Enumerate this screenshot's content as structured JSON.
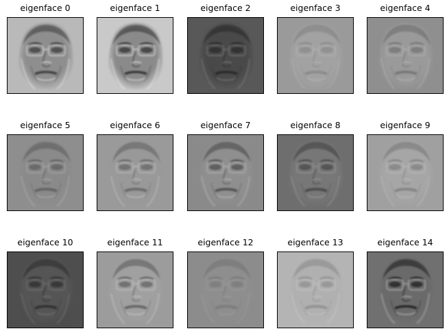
{
  "figure": {
    "panels": [
      {
        "title": "eigenface 0",
        "bg": "#b9b9b9",
        "face": "#8e8e8e",
        "dark": "#3a3a3a",
        "light": "#e8e8e8",
        "contrast": 0.9
      },
      {
        "title": "eigenface 1",
        "bg": "#c9c9c9",
        "face": "#8a8a8a",
        "dark": "#2a2a2a",
        "light": "#f2f2f2",
        "contrast": 0.85
      },
      {
        "title": "eigenface 2",
        "bg": "#585858",
        "face": "#4a4a4a",
        "dark": "#1e1e1e",
        "light": "#8e8e8e",
        "contrast": 0.7
      },
      {
        "title": "eigenface 3",
        "bg": "#9a9a9a",
        "face": "#a2a2a2",
        "dark": "#6a6a6a",
        "light": "#cfcfcf",
        "contrast": 0.4
      },
      {
        "title": "eigenface 4",
        "bg": "#8f8f8f",
        "face": "#9a9a9a",
        "dark": "#555555",
        "light": "#d2d2d2",
        "contrast": 0.5
      },
      {
        "title": "eigenface 5",
        "bg": "#8e8e8e",
        "face": "#8a8a8a",
        "dark": "#444444",
        "light": "#c8c8c8",
        "contrast": 0.55
      },
      {
        "title": "eigenface 6",
        "bg": "#9a9a9a",
        "face": "#999999",
        "dark": "#4a4a4a",
        "light": "#dcdcdc",
        "contrast": 0.6
      },
      {
        "title": "eigenface 7",
        "bg": "#8a8a8a",
        "face": "#8f8f8f",
        "dark": "#333333",
        "light": "#d0d0d0",
        "contrast": 0.65
      },
      {
        "title": "eigenface 8",
        "bg": "#6e6e6e",
        "face": "#777777",
        "dark": "#2e2e2e",
        "light": "#b0b0b0",
        "contrast": 0.6
      },
      {
        "title": "eigenface 9",
        "bg": "#a0a0a0",
        "face": "#a6a6a6",
        "dark": "#5a5a5a",
        "light": "#d8d8d8",
        "contrast": 0.45
      },
      {
        "title": "eigenface 10",
        "bg": "#4e4e4e",
        "face": "#555555",
        "dark": "#1c1c1c",
        "light": "#8a8a8a",
        "contrast": 0.6
      },
      {
        "title": "eigenface 11",
        "bg": "#9c9c9c",
        "face": "#a0a0a0",
        "dark": "#404040",
        "light": "#e0e0e0",
        "contrast": 0.6
      },
      {
        "title": "eigenface 12",
        "bg": "#8c8c8c",
        "face": "#8e8e8e",
        "dark": "#5a5a5a",
        "light": "#b6b6b6",
        "contrast": 0.35
      },
      {
        "title": "eigenface 13",
        "bg": "#b4b4b4",
        "face": "#b0b0b0",
        "dark": "#707070",
        "light": "#dedede",
        "contrast": 0.45
      },
      {
        "title": "eigenface 14",
        "bg": "#707070",
        "face": "#6a6a6a",
        "dark": "#141414",
        "light": "#c8c8c8",
        "contrast": 0.8
      }
    ]
  }
}
